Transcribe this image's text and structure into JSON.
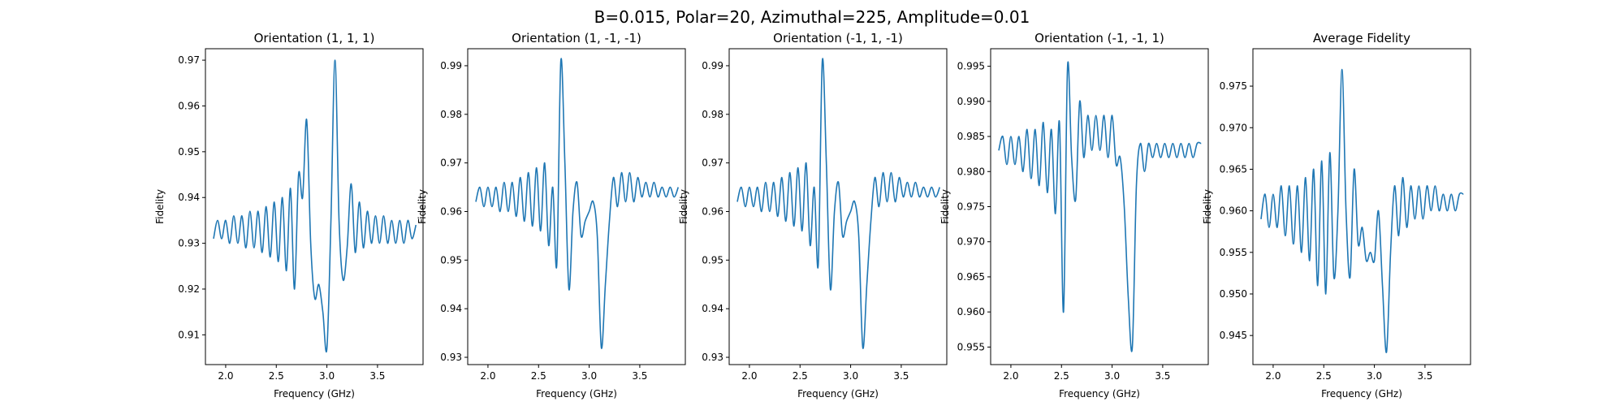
{
  "figure": {
    "suptitle": "B=0.015, Polar=20, Azimuthal=225, Amplitude=0.01",
    "line_color": "#1f77b4"
  },
  "chart_data": [
    {
      "type": "line",
      "title": "Orientation (1, 1, 1)",
      "xlabel": "Frequency (GHz)",
      "ylabel": "Fidelity",
      "xlim": [
        1.8,
        3.95
      ],
      "ylim": [
        0.9035,
        0.9725
      ],
      "xticks": [
        2.0,
        2.5,
        3.0,
        3.5
      ],
      "xtick_labels": [
        "2.0",
        "2.5",
        "3.0",
        "3.5"
      ],
      "yticks": [
        0.91,
        0.92,
        0.93,
        0.94,
        0.95,
        0.96,
        0.97
      ],
      "ytick_labels": [
        "0.91",
        "0.92",
        "0.93",
        "0.94",
        "0.95",
        "0.96",
        "0.97"
      ],
      "series": [
        {
          "x": [
            1.88,
            1.92,
            1.96,
            2.0,
            2.04,
            2.08,
            2.12,
            2.16,
            2.2,
            2.24,
            2.28,
            2.32,
            2.36,
            2.4,
            2.44,
            2.48,
            2.52,
            2.56,
            2.6,
            2.64,
            2.68,
            2.72,
            2.76,
            2.8,
            2.84,
            2.88,
            2.92,
            2.96,
            3.0,
            3.04,
            3.08,
            3.12,
            3.16,
            3.2,
            3.24,
            3.28,
            3.32,
            3.36,
            3.4,
            3.44,
            3.48,
            3.52,
            3.56,
            3.6,
            3.64,
            3.68,
            3.72,
            3.76,
            3.8,
            3.84,
            3.88
          ],
          "y": [
            0.931,
            0.935,
            0.931,
            0.935,
            0.93,
            0.936,
            0.93,
            0.936,
            0.929,
            0.937,
            0.929,
            0.937,
            0.928,
            0.938,
            0.927,
            0.939,
            0.926,
            0.94,
            0.924,
            0.942,
            0.92,
            0.945,
            0.94,
            0.957,
            0.93,
            0.918,
            0.921,
            0.915,
            0.907,
            0.935,
            0.97,
            0.935,
            0.922,
            0.929,
            0.943,
            0.928,
            0.939,
            0.929,
            0.937,
            0.93,
            0.936,
            0.93,
            0.936,
            0.93,
            0.935,
            0.93,
            0.935,
            0.93,
            0.935,
            0.931,
            0.934
          ]
        }
      ]
    },
    {
      "type": "line",
      "title": "Orientation (1, -1, -1)",
      "xlabel": "Frequency (GHz)",
      "ylabel": "Fidelity",
      "xlim": [
        1.8,
        3.95
      ],
      "ylim": [
        0.9285,
        0.9935
      ],
      "xticks": [
        2.0,
        2.5,
        3.0,
        3.5
      ],
      "xtick_labels": [
        "2.0",
        "2.5",
        "3.0",
        "3.5"
      ],
      "yticks": [
        0.93,
        0.94,
        0.95,
        0.96,
        0.97,
        0.98,
        0.99
      ],
      "ytick_labels": [
        "0.93",
        "0.94",
        "0.95",
        "0.96",
        "0.97",
        "0.98",
        "0.99"
      ],
      "series": [
        {
          "x": [
            1.88,
            1.92,
            1.96,
            2.0,
            2.04,
            2.08,
            2.12,
            2.16,
            2.2,
            2.24,
            2.28,
            2.32,
            2.36,
            2.4,
            2.44,
            2.48,
            2.52,
            2.56,
            2.6,
            2.64,
            2.68,
            2.72,
            2.76,
            2.8,
            2.84,
            2.88,
            2.92,
            2.96,
            3.0,
            3.04,
            3.08,
            3.12,
            3.16,
            3.2,
            3.24,
            3.28,
            3.32,
            3.36,
            3.4,
            3.44,
            3.48,
            3.52,
            3.56,
            3.6,
            3.64,
            3.68,
            3.72,
            3.76,
            3.8,
            3.84,
            3.88
          ],
          "y": [
            0.962,
            0.965,
            0.961,
            0.965,
            0.961,
            0.965,
            0.96,
            0.966,
            0.96,
            0.966,
            0.959,
            0.967,
            0.958,
            0.968,
            0.957,
            0.969,
            0.956,
            0.97,
            0.953,
            0.965,
            0.949,
            0.991,
            0.97,
            0.944,
            0.96,
            0.966,
            0.955,
            0.958,
            0.96,
            0.962,
            0.955,
            0.932,
            0.945,
            0.958,
            0.967,
            0.961,
            0.968,
            0.962,
            0.968,
            0.962,
            0.967,
            0.963,
            0.966,
            0.963,
            0.966,
            0.963,
            0.965,
            0.963,
            0.965,
            0.963,
            0.965
          ]
        }
      ]
    },
    {
      "type": "line",
      "title": "Orientation (-1, 1, -1)",
      "xlabel": "Frequency (GHz)",
      "ylabel": "Fidelity",
      "xlim": [
        1.8,
        3.95
      ],
      "ylim": [
        0.9285,
        0.9935
      ],
      "xticks": [
        2.0,
        2.5,
        3.0,
        3.5
      ],
      "xtick_labels": [
        "2.0",
        "2.5",
        "3.0",
        "3.5"
      ],
      "yticks": [
        0.93,
        0.94,
        0.95,
        0.96,
        0.97,
        0.98,
        0.99
      ],
      "ytick_labels": [
        "0.93",
        "0.94",
        "0.95",
        "0.96",
        "0.97",
        "0.98",
        "0.99"
      ],
      "series": [
        {
          "x": [
            1.88,
            1.92,
            1.96,
            2.0,
            2.04,
            2.08,
            2.12,
            2.16,
            2.2,
            2.24,
            2.28,
            2.32,
            2.36,
            2.4,
            2.44,
            2.48,
            2.52,
            2.56,
            2.6,
            2.64,
            2.68,
            2.72,
            2.76,
            2.8,
            2.84,
            2.88,
            2.92,
            2.96,
            3.0,
            3.04,
            3.08,
            3.12,
            3.16,
            3.2,
            3.24,
            3.28,
            3.32,
            3.36,
            3.4,
            3.44,
            3.48,
            3.52,
            3.56,
            3.6,
            3.64,
            3.68,
            3.72,
            3.76,
            3.8,
            3.84,
            3.88
          ],
          "y": [
            0.962,
            0.965,
            0.961,
            0.965,
            0.961,
            0.965,
            0.96,
            0.966,
            0.96,
            0.966,
            0.959,
            0.967,
            0.958,
            0.968,
            0.957,
            0.969,
            0.956,
            0.97,
            0.953,
            0.965,
            0.949,
            0.991,
            0.97,
            0.944,
            0.96,
            0.966,
            0.955,
            0.958,
            0.96,
            0.962,
            0.955,
            0.932,
            0.945,
            0.958,
            0.967,
            0.961,
            0.968,
            0.962,
            0.968,
            0.962,
            0.967,
            0.963,
            0.966,
            0.963,
            0.966,
            0.963,
            0.965,
            0.963,
            0.965,
            0.963,
            0.965
          ]
        }
      ]
    },
    {
      "type": "line",
      "title": "Orientation (-1, -1, 1)",
      "xlabel": "Frequency (GHz)",
      "ylabel": "Fidelity",
      "xlim": [
        1.8,
        3.95
      ],
      "ylim": [
        0.9525,
        0.9975
      ],
      "xticks": [
        2.0,
        2.5,
        3.0,
        3.5
      ],
      "xtick_labels": [
        "2.0",
        "2.5",
        "3.0",
        "3.5"
      ],
      "yticks": [
        0.955,
        0.96,
        0.965,
        0.97,
        0.975,
        0.98,
        0.985,
        0.99,
        0.995
      ],
      "ytick_labels": [
        "0.955",
        "0.960",
        "0.965",
        "0.970",
        "0.975",
        "0.980",
        "0.985",
        "0.990",
        "0.995"
      ],
      "series": [
        {
          "x": [
            1.88,
            1.92,
            1.96,
            2.0,
            2.04,
            2.08,
            2.12,
            2.16,
            2.2,
            2.24,
            2.28,
            2.32,
            2.36,
            2.4,
            2.44,
            2.48,
            2.52,
            2.56,
            2.6,
            2.64,
            2.68,
            2.72,
            2.76,
            2.8,
            2.84,
            2.88,
            2.92,
            2.96,
            3.0,
            3.04,
            3.08,
            3.12,
            3.16,
            3.2,
            3.24,
            3.28,
            3.32,
            3.36,
            3.4,
            3.44,
            3.48,
            3.52,
            3.56,
            3.6,
            3.64,
            3.68,
            3.72,
            3.76,
            3.8,
            3.84,
            3.88
          ],
          "y": [
            0.983,
            0.985,
            0.981,
            0.985,
            0.981,
            0.985,
            0.98,
            0.986,
            0.979,
            0.986,
            0.978,
            0.987,
            0.977,
            0.986,
            0.974,
            0.987,
            0.96,
            0.995,
            0.982,
            0.976,
            0.99,
            0.982,
            0.988,
            0.983,
            0.988,
            0.983,
            0.988,
            0.982,
            0.988,
            0.981,
            0.982,
            0.975,
            0.962,
            0.955,
            0.978,
            0.984,
            0.98,
            0.984,
            0.982,
            0.984,
            0.982,
            0.984,
            0.982,
            0.984,
            0.982,
            0.984,
            0.982,
            0.984,
            0.982,
            0.984,
            0.984
          ]
        }
      ]
    },
    {
      "type": "line",
      "title": "Average Fidelity",
      "xlabel": "Frequency (GHz)",
      "ylabel": "Fidelity",
      "xlim": [
        1.8,
        3.95
      ],
      "ylim": [
        0.9415,
        0.9795
      ],
      "xticks": [
        2.0,
        2.5,
        3.0,
        3.5
      ],
      "xtick_labels": [
        "2.0",
        "2.5",
        "3.0",
        "3.5"
      ],
      "yticks": [
        0.945,
        0.95,
        0.955,
        0.96,
        0.965,
        0.97,
        0.975
      ],
      "ytick_labels": [
        "0.945",
        "0.950",
        "0.955",
        "0.960",
        "0.965",
        "0.970",
        "0.975"
      ],
      "series": [
        {
          "x": [
            1.88,
            1.92,
            1.96,
            2.0,
            2.04,
            2.08,
            2.12,
            2.16,
            2.2,
            2.24,
            2.28,
            2.32,
            2.36,
            2.4,
            2.44,
            2.48,
            2.52,
            2.56,
            2.6,
            2.64,
            2.68,
            2.72,
            2.76,
            2.8,
            2.84,
            2.88,
            2.92,
            2.96,
            3.0,
            3.04,
            3.08,
            3.12,
            3.16,
            3.2,
            3.24,
            3.28,
            3.32,
            3.36,
            3.4,
            3.44,
            3.48,
            3.52,
            3.56,
            3.6,
            3.64,
            3.68,
            3.72,
            3.76,
            3.8,
            3.84,
            3.88
          ],
          "y": [
            0.959,
            0.962,
            0.958,
            0.962,
            0.958,
            0.963,
            0.957,
            0.963,
            0.956,
            0.963,
            0.955,
            0.964,
            0.954,
            0.965,
            0.951,
            0.966,
            0.95,
            0.967,
            0.952,
            0.96,
            0.977,
            0.96,
            0.952,
            0.965,
            0.956,
            0.958,
            0.954,
            0.955,
            0.954,
            0.96,
            0.951,
            0.943,
            0.955,
            0.963,
            0.957,
            0.964,
            0.958,
            0.963,
            0.959,
            0.963,
            0.959,
            0.963,
            0.96,
            0.963,
            0.96,
            0.962,
            0.96,
            0.962,
            0.96,
            0.962,
            0.962
          ]
        }
      ]
    }
  ]
}
